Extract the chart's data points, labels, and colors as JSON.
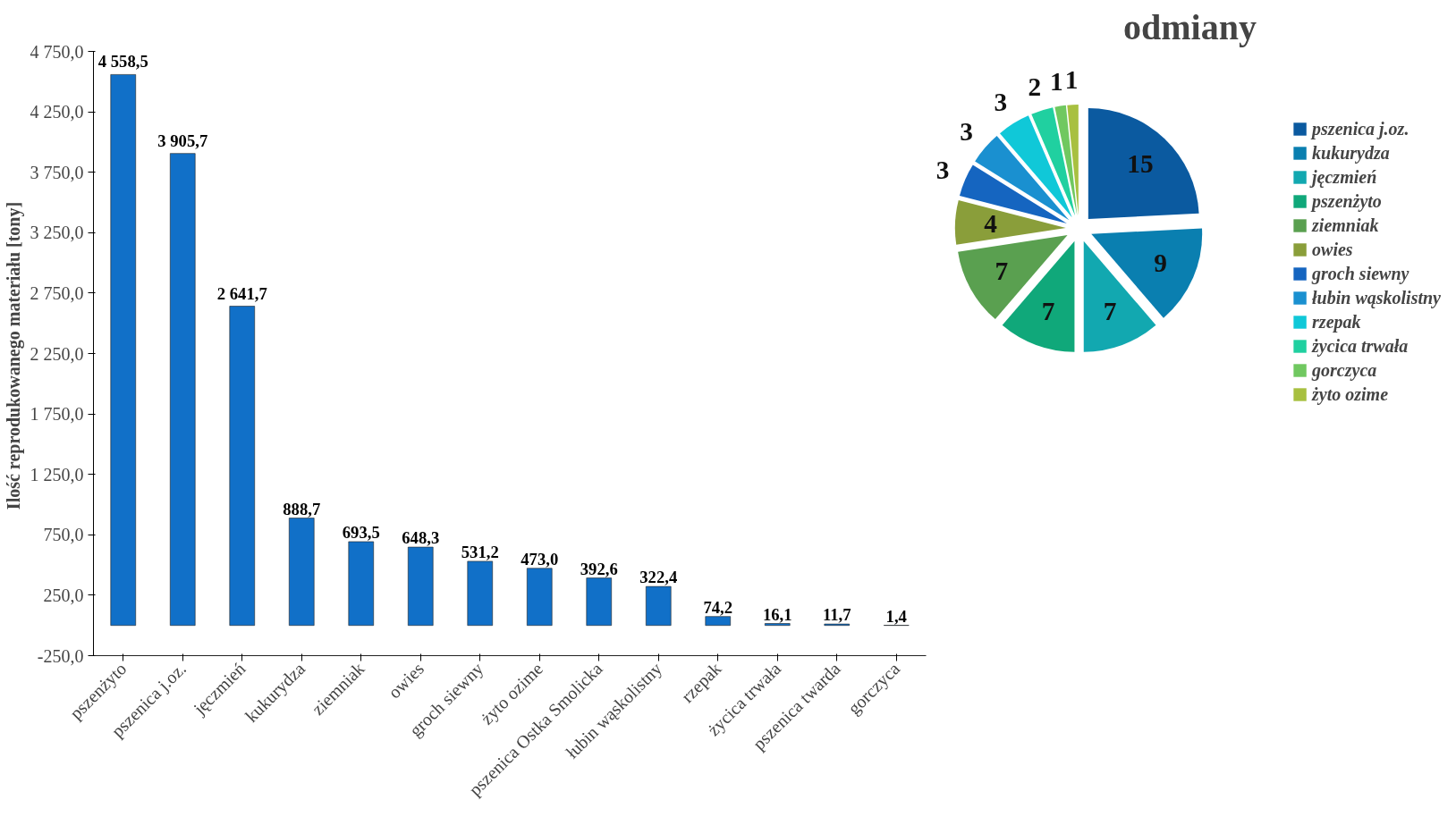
{
  "chart_data": [
    {
      "type": "bar",
      "ylabel": "Ilość  reprodukowanego materiału [tony]",
      "categories": [
        "pszenżyto",
        "pszenica j.oz.",
        "jęczmień",
        "kukurydza",
        "ziemniak",
        "owies",
        "groch siewny",
        "żyto ozime",
        "pszenica Ostka Smolicka",
        "łubin wąskolistny",
        "rzepak",
        "życica trwała",
        "pszenica twarda",
        "gorczyca"
      ],
      "values": [
        4558.5,
        3905.7,
        2641.7,
        888.7,
        693.5,
        648.3,
        531.2,
        473.0,
        392.6,
        322.4,
        74.2,
        16.1,
        11.7,
        1.4
      ],
      "value_labels": [
        "4 558,5",
        "3 905,7",
        "2 641,7",
        "888,7",
        "693,5",
        "648,3",
        "531,2",
        "473,0",
        "392,6",
        "322,4",
        "74,2",
        "16,1",
        "11,7",
        "1,4"
      ],
      "color": "#1170c8",
      "ylim": [
        -250,
        4750
      ],
      "yticks": [
        {
          "value": -250,
          "label": "-250,0"
        },
        {
          "value": 250,
          "label": "250,0"
        },
        {
          "value": 750,
          "label": "750,0"
        },
        {
          "value": 1250,
          "label": "1 250,0"
        },
        {
          "value": 1750,
          "label": "1 750,0"
        },
        {
          "value": 2250,
          "label": "2 250,0"
        },
        {
          "value": 2750,
          "label": "2 750,0"
        },
        {
          "value": 3250,
          "label": "3 250,0"
        },
        {
          "value": 3750,
          "label": "3 750,0"
        },
        {
          "value": 4250,
          "label": "4 250,0"
        },
        {
          "value": 4750,
          "label": "4 750,0"
        }
      ],
      "grid": false
    },
    {
      "type": "pie",
      "title": "odmiany",
      "categories": [
        "pszenica j.oz.",
        "kukurydza",
        "jęczmień",
        "pszenżyto",
        "ziemniak",
        "owies",
        "groch siewny",
        "łubin wąskolistny",
        "rzepak",
        "życica trwała",
        "gorczyca",
        "żyto ozime"
      ],
      "values": [
        15,
        9,
        7,
        7,
        7,
        4,
        3,
        3,
        3,
        2,
        1,
        1
      ],
      "colors": [
        "#0b5aa0",
        "#0a7fb0",
        "#12a8b0",
        "#10a87a",
        "#5aa050",
        "#8a9e3a",
        "#1565c0",
        "#1a90d0",
        "#10c8d8",
        "#20d0a0",
        "#70c860",
        "#a8c040"
      ],
      "data_labels": true,
      "legend": "right"
    }
  ]
}
